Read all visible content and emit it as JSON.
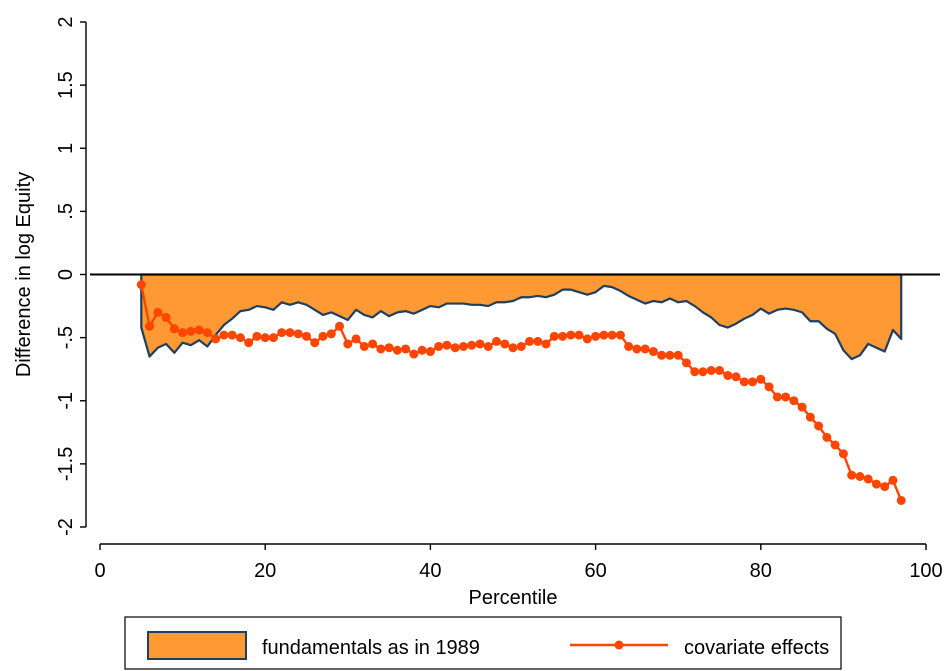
{
  "chart_data": {
    "type": "area",
    "xlabel": "Percentile",
    "ylabel": "Difference in log Equity",
    "xlim": [
      0,
      100
    ],
    "ylim": [
      -2,
      2
    ],
    "xticks": [
      0,
      20,
      40,
      60,
      80,
      100
    ],
    "yticks": [
      {
        "value": -2,
        "label": "-2"
      },
      {
        "value": -1.5,
        "label": "-1.5"
      },
      {
        "value": -1,
        "label": "-1"
      },
      {
        "value": -0.5,
        "label": "-.5"
      },
      {
        "value": 0,
        "label": "0"
      },
      {
        "value": 0.5,
        "label": ".5"
      },
      {
        "value": 1,
        "label": "1"
      },
      {
        "value": 1.5,
        "label": "1.5"
      },
      {
        "value": 2,
        "label": "2"
      }
    ],
    "reference_line": 0,
    "grid": false,
    "legend_position": "bottom",
    "colors": {
      "area_fill": "#FF9933",
      "area_edge": "#1F3F5F",
      "line": "#FF4500"
    },
    "series": [
      {
        "name": "fundamentals as in 1989",
        "kind": "area",
        "x": [
          5,
          6,
          7,
          8,
          9,
          10,
          11,
          12,
          13,
          14,
          15,
          16,
          17,
          18,
          19,
          20,
          21,
          22,
          23,
          24,
          25,
          26,
          27,
          28,
          29,
          30,
          31,
          32,
          33,
          34,
          35,
          36,
          37,
          38,
          39,
          40,
          41,
          42,
          43,
          44,
          45,
          46,
          47,
          48,
          49,
          50,
          51,
          52,
          53,
          54,
          55,
          56,
          57,
          58,
          59,
          60,
          61,
          62,
          63,
          64,
          65,
          66,
          67,
          68,
          69,
          70,
          71,
          72,
          73,
          74,
          75,
          76,
          77,
          78,
          79,
          80,
          81,
          82,
          83,
          84,
          85,
          86,
          87,
          88,
          89,
          90,
          91,
          92,
          93,
          94,
          95,
          96,
          97
        ],
        "values": [
          -0.42,
          -0.65,
          -0.58,
          -0.55,
          -0.62,
          -0.54,
          -0.56,
          -0.52,
          -0.57,
          -0.48,
          -0.4,
          -0.35,
          -0.29,
          -0.28,
          -0.25,
          -0.26,
          -0.28,
          -0.22,
          -0.24,
          -0.22,
          -0.24,
          -0.28,
          -0.32,
          -0.3,
          -0.33,
          -0.36,
          -0.28,
          -0.32,
          -0.34,
          -0.29,
          -0.33,
          -0.3,
          -0.29,
          -0.31,
          -0.28,
          -0.25,
          -0.26,
          -0.23,
          -0.23,
          -0.23,
          -0.24,
          -0.24,
          -0.25,
          -0.22,
          -0.22,
          -0.21,
          -0.18,
          -0.18,
          -0.17,
          -0.18,
          -0.16,
          -0.12,
          -0.12,
          -0.14,
          -0.16,
          -0.14,
          -0.09,
          -0.1,
          -0.13,
          -0.17,
          -0.2,
          -0.23,
          -0.21,
          -0.22,
          -0.19,
          -0.22,
          -0.21,
          -0.25,
          -0.3,
          -0.34,
          -0.4,
          -0.42,
          -0.39,
          -0.35,
          -0.32,
          -0.27,
          -0.31,
          -0.28,
          -0.27,
          -0.28,
          -0.3,
          -0.37,
          -0.37,
          -0.43,
          -0.47,
          -0.6,
          -0.67,
          -0.64,
          -0.55,
          -0.58,
          -0.61,
          -0.44,
          -0.51
        ]
      },
      {
        "name": "covariate effects",
        "kind": "line",
        "x": [
          5,
          6,
          7,
          8,
          9,
          10,
          11,
          12,
          13,
          14,
          15,
          16,
          17,
          18,
          19,
          20,
          21,
          22,
          23,
          24,
          25,
          26,
          27,
          28,
          29,
          30,
          31,
          32,
          33,
          34,
          35,
          36,
          37,
          38,
          39,
          40,
          41,
          42,
          43,
          44,
          45,
          46,
          47,
          48,
          49,
          50,
          51,
          52,
          53,
          54,
          55,
          56,
          57,
          58,
          59,
          60,
          61,
          62,
          63,
          64,
          65,
          66,
          67,
          68,
          69,
          70,
          71,
          72,
          73,
          74,
          75,
          76,
          77,
          78,
          79,
          80,
          81,
          82,
          83,
          84,
          85,
          86,
          87,
          88,
          89,
          90,
          91,
          92,
          93,
          94,
          95,
          96,
          97
        ],
        "values": [
          -0.08,
          -0.41,
          -0.3,
          -0.34,
          -0.43,
          -0.46,
          -0.45,
          -0.44,
          -0.46,
          -0.51,
          -0.48,
          -0.48,
          -0.5,
          -0.54,
          -0.49,
          -0.5,
          -0.5,
          -0.46,
          -0.46,
          -0.47,
          -0.49,
          -0.54,
          -0.49,
          -0.47,
          -0.41,
          -0.55,
          -0.51,
          -0.57,
          -0.55,
          -0.59,
          -0.58,
          -0.6,
          -0.59,
          -0.63,
          -0.6,
          -0.61,
          -0.57,
          -0.56,
          -0.58,
          -0.57,
          -0.56,
          -0.55,
          -0.57,
          -0.53,
          -0.55,
          -0.58,
          -0.57,
          -0.53,
          -0.53,
          -0.55,
          -0.49,
          -0.49,
          -0.48,
          -0.48,
          -0.51,
          -0.49,
          -0.48,
          -0.48,
          -0.48,
          -0.57,
          -0.59,
          -0.59,
          -0.61,
          -0.64,
          -0.64,
          -0.64,
          -0.7,
          -0.77,
          -0.77,
          -0.76,
          -0.76,
          -0.8,
          -0.81,
          -0.85,
          -0.85,
          -0.83,
          -0.89,
          -0.97,
          -0.97,
          -1.0,
          -1.05,
          -1.13,
          -1.2,
          -1.29,
          -1.35,
          -1.42,
          -1.59,
          -1.6,
          -1.62,
          -1.66,
          -1.68,
          -1.63,
          -1.79
        ]
      }
    ]
  }
}
